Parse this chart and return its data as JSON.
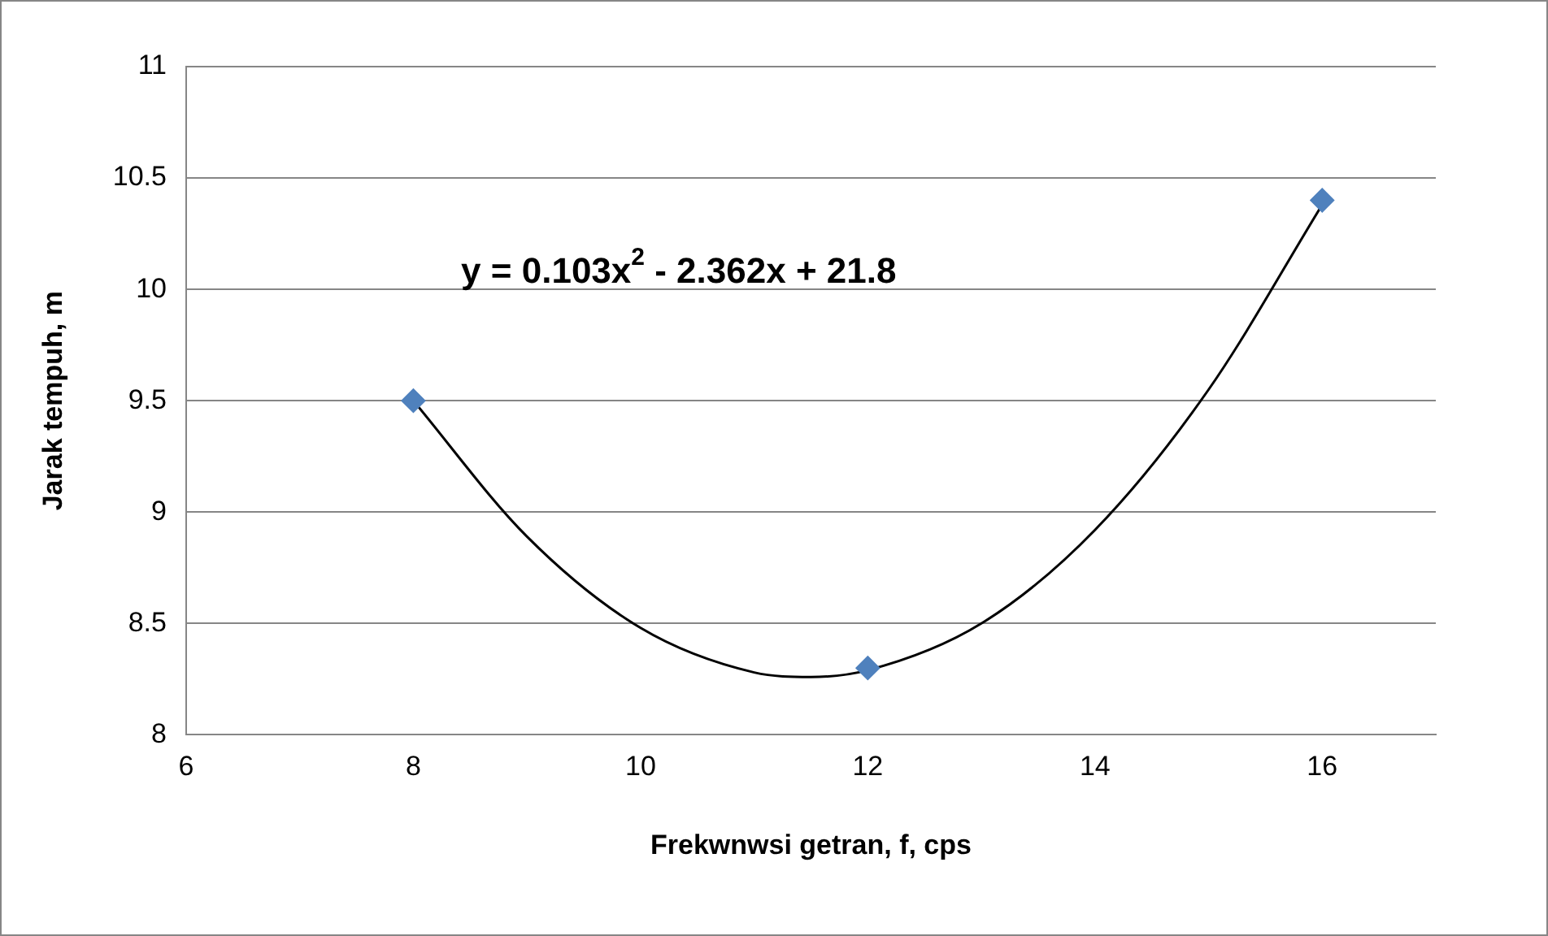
{
  "chart_data": {
    "type": "scatter",
    "xlabel": "Frekwnwsi getran, f, cps",
    "ylabel": "Jarak tempuh, m",
    "xlim": [
      6,
      17
    ],
    "xticks": [
      6,
      8,
      10,
      12,
      14,
      16
    ],
    "ylim": [
      8,
      11
    ],
    "yticks": [
      8,
      8.5,
      9,
      9.5,
      10,
      10.5,
      11
    ],
    "grid": "y",
    "legend": false,
    "marker": "diamond",
    "series": [
      {
        "color": "#4f81bd",
        "x": [
          8,
          12,
          16
        ],
        "values": [
          9.5,
          8.3,
          10.4
        ]
      },
      {
        "type": "line",
        "color": "#000000",
        "marker": "none",
        "x": [
          8,
          9,
          10,
          11,
          11.5,
          12,
          13,
          14,
          15,
          16
        ],
        "values": [
          9.5,
          8.89,
          8.48,
          8.28,
          8.26,
          8.29,
          8.5,
          8.92,
          9.55,
          10.38
        ]
      }
    ],
    "annotations": [
      "y = 0.103x$^{2}$ - 2.362x + 21.8"
    ]
  }
}
